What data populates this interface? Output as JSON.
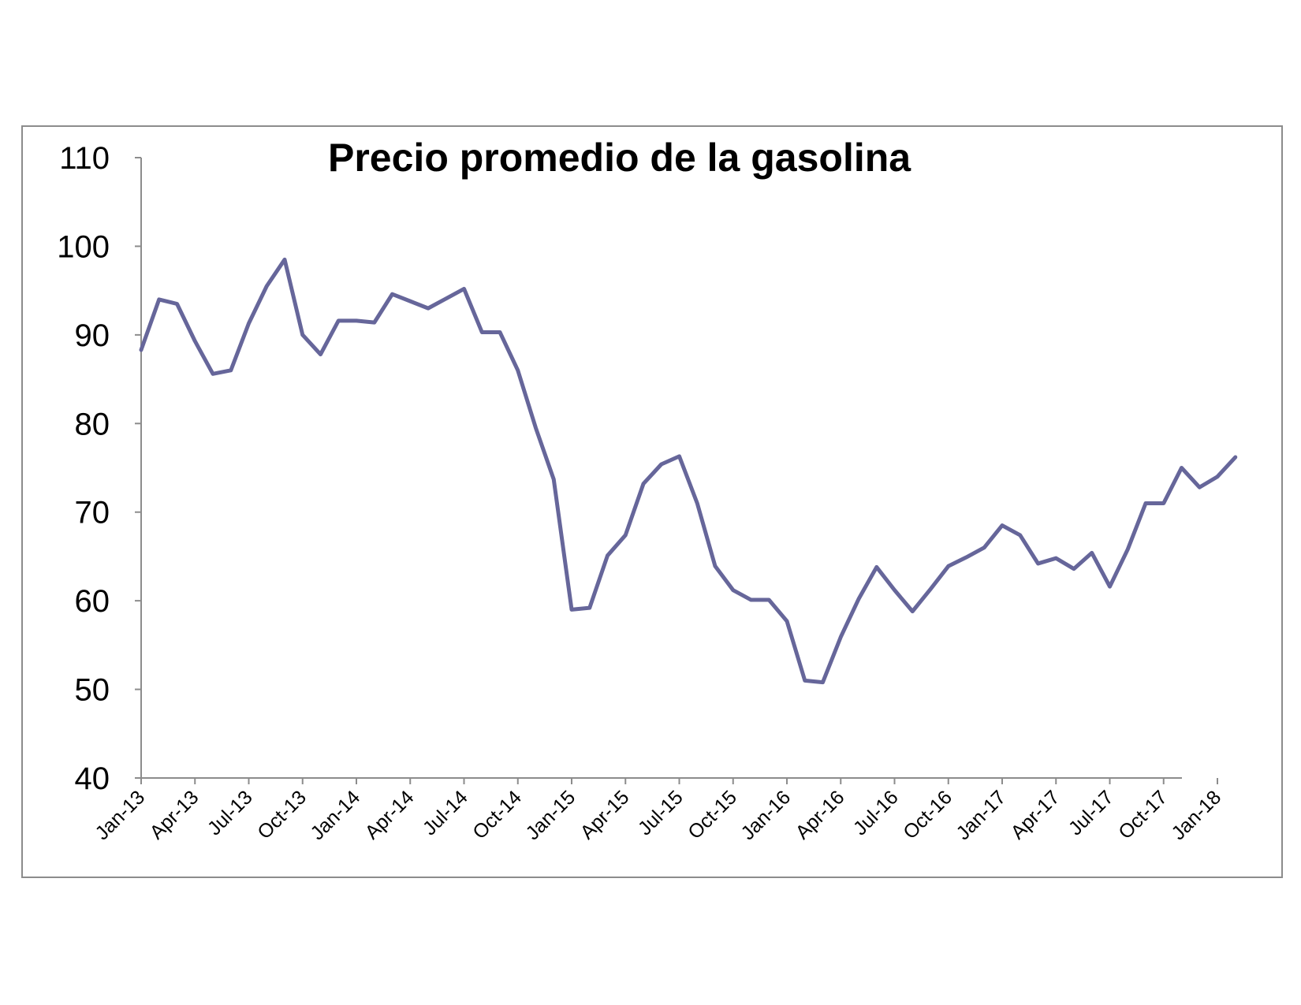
{
  "chart_data": {
    "type": "line",
    "title": "Precio promedio de la gasolina",
    "xlabel": "",
    "ylabel": "",
    "ylim": [
      40,
      110
    ],
    "yticks": [
      40,
      50,
      60,
      70,
      80,
      90,
      100,
      110
    ],
    "x_tick_labels": [
      "Jan-13",
      "Apr-13",
      "Jul-13",
      "Oct-13",
      "Jan-14",
      "Apr-14",
      "Jul-14",
      "Oct-14",
      "Jan-15",
      "Apr-15",
      "Jul-15",
      "Oct-15",
      "Jan-16",
      "Apr-16",
      "Jul-16",
      "Oct-16",
      "Jan-17",
      "Apr-17",
      "Jul-17",
      "Oct-17",
      "Jan-18"
    ],
    "grid": false,
    "legend": "none",
    "colors": {
      "series": "#66669a",
      "axis": "#8c8c8c",
      "frame": "#8c8c8c"
    },
    "x": [
      "Jan-13",
      "Feb-13",
      "Mar-13",
      "Apr-13",
      "May-13",
      "Jun-13",
      "Jul-13",
      "Aug-13",
      "Sep-13",
      "Oct-13",
      "Nov-13",
      "Dec-13",
      "Jan-14",
      "Feb-14",
      "Mar-14",
      "Apr-14",
      "May-14",
      "Jun-14",
      "Jul-14",
      "Aug-14",
      "Sep-14",
      "Oct-14",
      "Nov-14",
      "Dec-14",
      "Jan-15",
      "Feb-15",
      "Mar-15",
      "Apr-15",
      "May-15",
      "Jun-15",
      "Jul-15",
      "Aug-15",
      "Sep-15",
      "Oct-15",
      "Nov-15",
      "Dec-15",
      "Jan-16",
      "Feb-16",
      "Mar-16",
      "Apr-16",
      "May-16",
      "Jun-16",
      "Jul-16",
      "Aug-16",
      "Sep-16",
      "Oct-16",
      "Nov-16",
      "Dec-16",
      "Jan-17",
      "Feb-17",
      "Mar-17",
      "Apr-17",
      "May-17",
      "Jun-17",
      "Jul-17",
      "Aug-17",
      "Sep-17",
      "Oct-17",
      "Nov-17",
      "Dec-17",
      "Jan-18",
      "Feb-18"
    ],
    "series": [
      {
        "values": [
          88.3,
          94.0,
          93.5,
          89.3,
          85.6,
          86.0,
          91.3,
          95.5,
          98.5,
          90.0,
          87.8,
          91.6,
          91.6,
          91.4,
          94.6,
          93.8,
          93.0,
          94.1,
          95.2,
          90.3,
          90.3,
          86.0,
          79.5,
          73.7,
          59.0,
          59.2,
          65.1,
          67.4,
          73.2,
          75.4,
          76.3,
          71.0,
          63.9,
          61.2,
          60.1,
          60.1,
          57.7,
          51.0,
          50.8,
          55.9,
          60.2,
          63.8,
          61.2,
          58.8,
          61.3,
          63.9,
          64.9,
          66.0,
          68.5,
          67.4,
          64.2,
          64.8,
          63.6,
          65.4,
          61.6,
          65.8,
          71.0,
          71.0,
          75.0,
          72.8,
          74.0,
          76.2
        ]
      }
    ]
  }
}
